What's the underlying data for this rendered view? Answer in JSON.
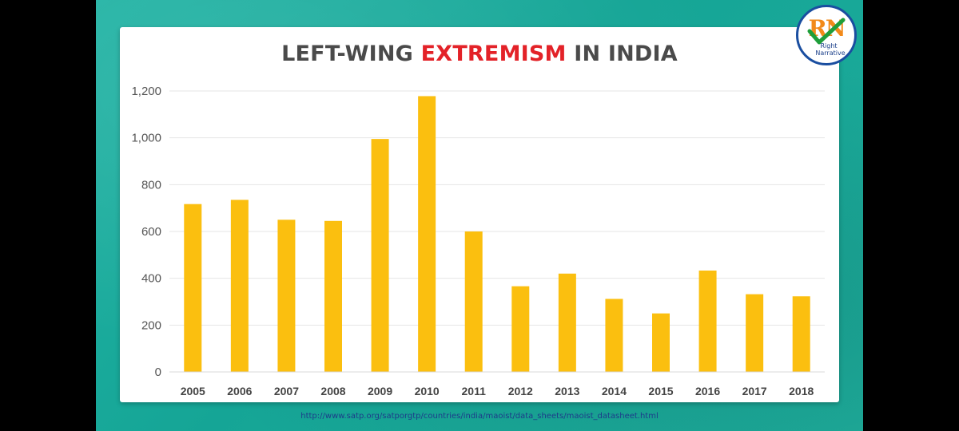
{
  "title": {
    "part1": "LEFT-WING ",
    "highlight": "EXTREMISM",
    "part2": " IN INDIA"
  },
  "logo": {
    "letters": "RN",
    "line1": "Right",
    "line2": "Narrative"
  },
  "source_url": "http://www.satp.org/satporgtp/countries/india/maoist/data_sheets/maoist_datasheet.html",
  "colors": {
    "bar": "#fbbf0f",
    "title": "#4a4a4a",
    "title_highlight": "#e32228",
    "background": "#17a898"
  },
  "chart_data": {
    "type": "bar",
    "categories": [
      "2005",
      "2006",
      "2007",
      "2008",
      "2009",
      "2010",
      "2011",
      "2012",
      "2013",
      "2014",
      "2015",
      "2016",
      "2017",
      "2018"
    ],
    "values": [
      717,
      735,
      650,
      645,
      995,
      1178,
      600,
      366,
      420,
      312,
      250,
      433,
      332,
      323
    ],
    "ylim": [
      0,
      1200
    ],
    "yticks": [
      0,
      200,
      400,
      600,
      800,
      1000,
      1200
    ],
    "ytick_labels": [
      "0",
      "200",
      "400",
      "600",
      "800",
      "1,000",
      "1,200"
    ],
    "grid": true,
    "legend": "none"
  }
}
